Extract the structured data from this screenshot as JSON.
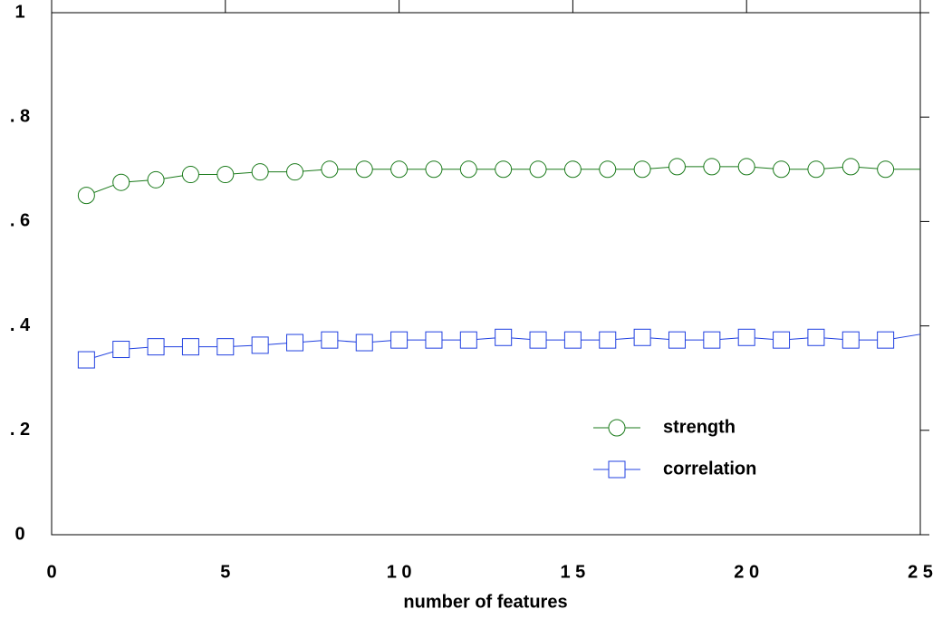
{
  "chart_data": {
    "type": "line",
    "xlabel": "number of features",
    "x": [
      1,
      2,
      3,
      4,
      5,
      6,
      7,
      8,
      9,
      10,
      11,
      12,
      13,
      14,
      15,
      16,
      17,
      18,
      19,
      20,
      21,
      22,
      23,
      24,
      25
    ],
    "series": [
      {
        "name": "strength",
        "color": "#1a7a1a",
        "marker": "circle",
        "values": [
          0.65,
          0.675,
          0.68,
          0.69,
          0.69,
          0.695,
          0.695,
          0.7,
          0.7,
          0.7,
          0.7,
          0.7,
          0.7,
          0.7,
          0.7,
          0.7,
          0.7,
          0.705,
          0.705,
          0.705,
          0.7,
          0.7,
          0.705,
          0.7,
          0.7
        ]
      },
      {
        "name": "correlation",
        "color": "#2040e0",
        "marker": "square",
        "values": [
          0.335,
          0.355,
          0.36,
          0.36,
          0.36,
          0.363,
          0.368,
          0.373,
          0.368,
          0.373,
          0.373,
          0.373,
          0.378,
          0.373,
          0.373,
          0.373,
          0.378,
          0.373,
          0.373,
          0.378,
          0.373,
          0.378,
          0.373,
          0.373,
          0.384
        ]
      }
    ],
    "xlim": [
      0,
      25
    ],
    "xticks": [
      0,
      5,
      {
        "value": 10,
        "label": "1 0"
      },
      {
        "value": 15,
        "label": "1 5"
      },
      {
        "value": 20,
        "label": "2 0"
      },
      {
        "value": 25,
        "label": "2 5"
      }
    ],
    "ylim": [
      0,
      1
    ],
    "yticks": [
      0,
      {
        "value": 0.2,
        "label": ". 2"
      },
      {
        "value": 0.4,
        "label": ". 4"
      },
      {
        "value": 0.6,
        "label": ". 6"
      },
      {
        "value": 0.8,
        "label": ". 8"
      },
      1
    ],
    "legend": "lower right"
  }
}
